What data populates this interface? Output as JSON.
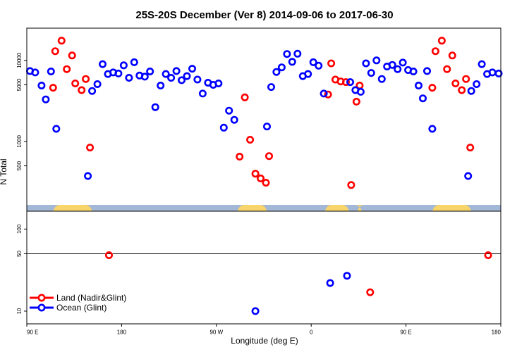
{
  "chart_data": {
    "type": "scatter",
    "title": "25S-20S December (Ver 8)   2014-09-06 to 2017-06-30",
    "xlabel": "Longitude (deg E)",
    "ylabel": "N Total",
    "x_ticks": [
      {
        "pos": 90,
        "label": "90 E"
      },
      {
        "pos": 180,
        "label": "180"
      },
      {
        "pos": 270,
        "label": "90 W"
      },
      {
        "pos": 360,
        "label": "0"
      },
      {
        "pos": 450,
        "label": "90 E"
      },
      {
        "pos": 540,
        "label": "180"
      }
    ],
    "xlim": [
      90,
      540
    ],
    "y_upper_ticks": [
      {
        "value": 10000,
        "label": "10000"
      },
      {
        "value": 5000,
        "label": "5000"
      },
      {
        "value": 1000,
        "label": "1000"
      },
      {
        "value": 500,
        "label": "500"
      }
    ],
    "y_upper_lim": [
      165,
      25000
    ],
    "y_lower_ticks": [
      {
        "value": 100,
        "label": "100"
      },
      {
        "value": 50,
        "label": "50"
      },
      {
        "value": 10,
        "label": "10"
      }
    ],
    "y_lower_lim": [
      7,
      165
    ],
    "reference_line": 50,
    "land_segments_lon": [
      [
        115,
        152
      ],
      [
        290,
        318
      ],
      [
        373,
        396
      ],
      [
        404,
        408
      ],
      [
        475,
        512
      ]
    ],
    "series": [
      {
        "name": "Land (Nadir&Glint)",
        "color": "#ff0000",
        "points": [
          [
            115,
            4600
          ],
          [
            117,
            13000
          ],
          [
            123,
            17500
          ],
          [
            128,
            7800
          ],
          [
            133,
            11500
          ],
          [
            136,
            5200
          ],
          [
            142,
            4300
          ],
          [
            146,
            5900
          ],
          [
            150,
            840
          ],
          [
            168,
            48
          ],
          [
            292,
            650
          ],
          [
            297,
            3500
          ],
          [
            302,
            1050
          ],
          [
            307,
            400
          ],
          [
            312,
            350
          ],
          [
            317,
            310
          ],
          [
            320,
            660
          ],
          [
            376,
            3800
          ],
          [
            379,
            9200
          ],
          [
            383,
            5800
          ],
          [
            388,
            5500
          ],
          [
            393,
            5400
          ],
          [
            398,
            290
          ],
          [
            403,
            3100
          ],
          [
            406,
            4900
          ],
          [
            416,
            17
          ],
          [
            475,
            4600
          ],
          [
            478,
            13000
          ],
          [
            484,
            17500
          ],
          [
            489,
            7800
          ],
          [
            494,
            11500
          ],
          [
            497,
            5200
          ],
          [
            503,
            4300
          ],
          [
            507,
            5900
          ],
          [
            511,
            840
          ],
          [
            528,
            48
          ]
        ]
      },
      {
        "name": "Ocean (Glint)",
        "color": "#0000ff",
        "points": [
          [
            93,
            7400
          ],
          [
            98,
            7100
          ],
          [
            104,
            4900
          ],
          [
            108,
            3300
          ],
          [
            113,
            7300
          ],
          [
            118,
            1430
          ],
          [
            148,
            375
          ],
          [
            152,
            4200
          ],
          [
            157,
            5100
          ],
          [
            162,
            9000
          ],
          [
            167,
            6800
          ],
          [
            172,
            7100
          ],
          [
            177,
            6900
          ],
          [
            182,
            8700
          ],
          [
            187,
            6100
          ],
          [
            192,
            9500
          ],
          [
            197,
            6500
          ],
          [
            202,
            6300
          ],
          [
            207,
            7300
          ],
          [
            212,
            2650
          ],
          [
            217,
            4900
          ],
          [
            222,
            6800
          ],
          [
            227,
            6100
          ],
          [
            232,
            7400
          ],
          [
            237,
            5700
          ],
          [
            242,
            6400
          ],
          [
            247,
            7900
          ],
          [
            252,
            5800
          ],
          [
            257,
            3900
          ],
          [
            262,
            5300
          ],
          [
            267,
            5000
          ],
          [
            272,
            5200
          ],
          [
            277,
            1480
          ],
          [
            282,
            2400
          ],
          [
            287,
            1850
          ],
          [
            318,
            1530
          ],
          [
            322,
            4700
          ],
          [
            327,
            7200
          ],
          [
            332,
            8200
          ],
          [
            337,
            12000
          ],
          [
            342,
            9600
          ],
          [
            347,
            12100
          ],
          [
            352,
            6400
          ],
          [
            357,
            6800
          ],
          [
            362,
            9500
          ],
          [
            367,
            8600
          ],
          [
            372,
            3900
          ],
          [
            378,
            22
          ],
          [
            394,
            27
          ],
          [
            397,
            5400
          ],
          [
            402,
            4300
          ],
          [
            407,
            4100
          ],
          [
            412,
            9200
          ],
          [
            417,
            7000
          ],
          [
            422,
            10000
          ],
          [
            427,
            5900
          ],
          [
            432,
            8400
          ],
          [
            437,
            8800
          ],
          [
            442,
            7800
          ],
          [
            447,
            9400
          ],
          [
            452,
            7600
          ],
          [
            457,
            7300
          ],
          [
            462,
            4900
          ],
          [
            466,
            3400
          ],
          [
            470,
            7400
          ],
          [
            475,
            1430
          ],
          [
            509,
            375
          ],
          [
            512,
            4200
          ],
          [
            517,
            5100
          ],
          [
            522,
            9000
          ],
          [
            527,
            6800
          ],
          [
            532,
            7100
          ],
          [
            538,
            6900
          ],
          [
            307,
            10
          ]
        ]
      }
    ],
    "legend": {
      "placement": "bottom-left",
      "entries": [
        "Land (Nadir&Glint)",
        "Ocean (Glint)"
      ]
    }
  }
}
